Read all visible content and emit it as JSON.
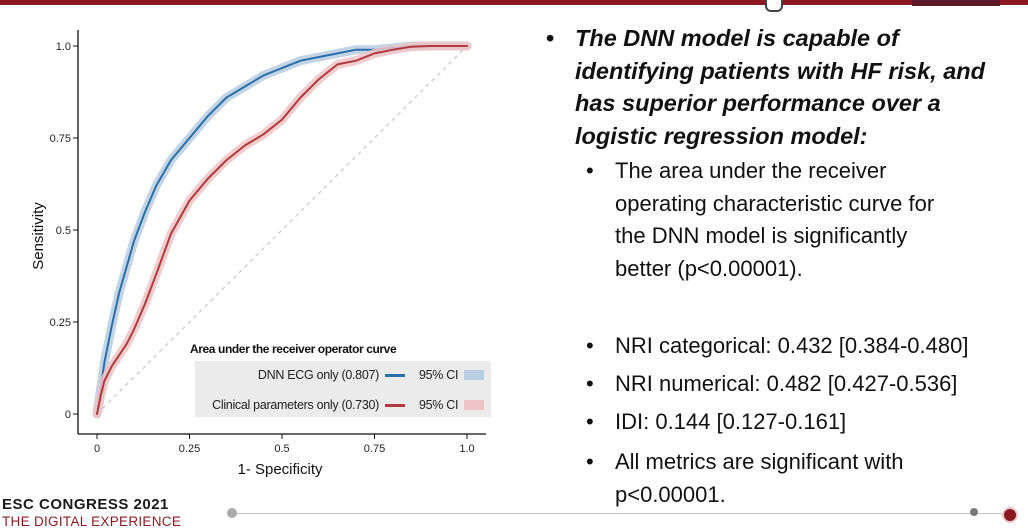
{
  "chart_data": {
    "type": "line",
    "xlabel": "1- Specificity",
    "ylabel": "Sensitivity",
    "xlim": [
      0,
      1
    ],
    "ylim": [
      0,
      1
    ],
    "x_ticks": [
      "0",
      "0.25",
      "0.5",
      "0.75",
      "1.0"
    ],
    "y_ticks": [
      "0",
      "0.25",
      "0.5",
      "0.75",
      "1.0"
    ],
    "legend_title": "Area under the receiver operator curve",
    "legend_position": "bottom-right",
    "reference_line": "diagonal, dashed",
    "series": [
      {
        "name": "DNN ECG only (0.807)",
        "ci_label": "95% CI",
        "color": "#2b6fa8",
        "band_color": "#b9cde3",
        "x": [
          0,
          0.01,
          0.02,
          0.04,
          0.06,
          0.08,
          0.1,
          0.13,
          0.16,
          0.2,
          0.25,
          0.3,
          0.35,
          0.4,
          0.45,
          0.5,
          0.55,
          0.6,
          0.65,
          0.7,
          0.75,
          0.8,
          0.85,
          0.9,
          0.95,
          1.0
        ],
        "y": [
          0,
          0.07,
          0.14,
          0.24,
          0.33,
          0.4,
          0.47,
          0.55,
          0.62,
          0.69,
          0.75,
          0.81,
          0.86,
          0.89,
          0.92,
          0.94,
          0.96,
          0.97,
          0.98,
          0.99,
          0.99,
          0.995,
          1.0,
          1.0,
          1.0,
          1.0
        ]
      },
      {
        "name": "Clinical parameters only (0.730)",
        "ci_label": "95% CI",
        "color": "#b03a3e",
        "band_color": "#efc4c6",
        "x": [
          0,
          0.01,
          0.02,
          0.04,
          0.06,
          0.08,
          0.1,
          0.13,
          0.16,
          0.2,
          0.25,
          0.3,
          0.35,
          0.4,
          0.45,
          0.5,
          0.55,
          0.6,
          0.65,
          0.7,
          0.75,
          0.8,
          0.85,
          0.9,
          0.95,
          1.0
        ],
        "y": [
          0,
          0.05,
          0.09,
          0.13,
          0.16,
          0.19,
          0.23,
          0.3,
          0.38,
          0.49,
          0.58,
          0.64,
          0.69,
          0.73,
          0.76,
          0.8,
          0.86,
          0.91,
          0.95,
          0.96,
          0.98,
          0.99,
          0.998,
          1.0,
          1.0,
          1.0
        ]
      }
    ]
  },
  "bullets": {
    "main": "The DNN model is capable of identifying patients with HF risk, and has superior performance over a logistic regression model:",
    "main_lines": [
      "The DNN model is capable of",
      "identifying patients with HF risk, and",
      "has superior performance over a",
      "logistic regression model:"
    ],
    "auc_lines": [
      "The area under the receiver",
      "operating characteristic curve for",
      "the DNN model is significantly",
      "better (p<0.00001)."
    ],
    "nri_cat": "NRI categorical: 0.432 [0.384-0.480]",
    "nri_num": "NRI numerical: 0.482 [0.427-0.536]",
    "idi": "IDI: 0.144 [0.127-0.161]",
    "all_lines": [
      "All metrics are significant with",
      "p<0.00001."
    ]
  },
  "footer": {
    "line1": "ESC CONGRESS 2021",
    "line2": "THE DIGITAL EXPERIENCE"
  }
}
